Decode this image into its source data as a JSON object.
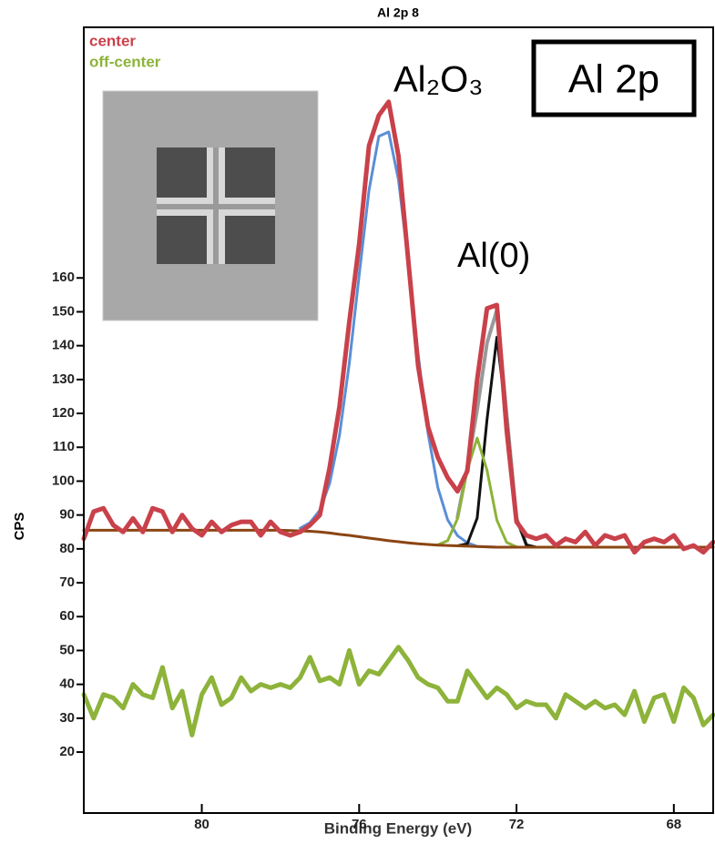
{
  "chart_data": {
    "type": "line",
    "title": "Al 2p 8",
    "x_label": "Binding Energy (eV)",
    "y_label": "CPS",
    "annotations": [
      "Al₂O₃",
      "Al(0)",
      "Al 2p"
    ],
    "xlim": [
      83,
      67
    ],
    "ylim": [
      2,
      234
    ],
    "xticks": [
      80,
      76,
      72,
      68
    ],
    "yticks": [
      20,
      30,
      40,
      50,
      60,
      70,
      80,
      90,
      100,
      110,
      120,
      130,
      140,
      150,
      160
    ],
    "legend": "upper left",
    "x": [
      83,
      82.75,
      82.5,
      82.25,
      82,
      81.75,
      81.5,
      81.25,
      81,
      80.75,
      80.5,
      80.25,
      80,
      79.75,
      79.5,
      79.25,
      79,
      78.75,
      78.5,
      78.25,
      78,
      77.75,
      77.5,
      77.25,
      77,
      76.75,
      76.5,
      76.25,
      76,
      75.75,
      75.5,
      75.25,
      75,
      74.75,
      74.5,
      74.25,
      74,
      73.75,
      73.5,
      73.25,
      73,
      72.75,
      72.5,
      72.25,
      72,
      71.75,
      71.5,
      71.25,
      71,
      70.75,
      70.5,
      70.25,
      70,
      69.75,
      69.5,
      69.25,
      69,
      68.75,
      68.5,
      68.25,
      68,
      67.75,
      67.5,
      67.25,
      67
    ],
    "series": [
      {
        "color": "#5b8fd6",
        "width": 3,
        "values": [
          null,
          null,
          null,
          null,
          null,
          null,
          null,
          null,
          null,
          null,
          null,
          null,
          null,
          null,
          null,
          null,
          null,
          null,
          null,
          null,
          null,
          null,
          86.1,
          87.7,
          91.4,
          99.3,
          113.5,
          134.8,
          160.8,
          185.8,
          201.8,
          203.1,
          189,
          164.5,
          137.4,
          114.2,
          98.1,
          88.6,
          83.9,
          81.8,
          80.7,
          80.6,
          80.5,
          null,
          null,
          null,
          null,
          null,
          null,
          null,
          null,
          null,
          null,
          null,
          null,
          null,
          null,
          null,
          null,
          null,
          null,
          null,
          null,
          null,
          null
        ]
      },
      {
        "color": "#999999",
        "width": 4,
        "values": [
          null,
          null,
          null,
          null,
          null,
          null,
          null,
          null,
          null,
          null,
          null,
          null,
          null,
          null,
          null,
          null,
          null,
          null,
          null,
          null,
          null,
          null,
          null,
          null,
          null,
          null,
          null,
          null,
          null,
          null,
          null,
          null,
          null,
          null,
          null,
          null,
          null,
          null,
          89.3,
          104.1,
          121.1,
          140.8,
          150.5,
          119.5,
          89,
          81.2,
          null,
          null,
          null,
          null,
          null,
          null,
          null,
          null,
          null,
          null,
          null,
          null,
          null,
          null,
          null,
          null,
          null,
          null,
          null
        ]
      },
      {
        "color": "#111111",
        "width": 3,
        "values": [
          null,
          null,
          null,
          null,
          null,
          null,
          null,
          null,
          null,
          null,
          null,
          null,
          null,
          null,
          null,
          null,
          null,
          null,
          null,
          null,
          null,
          null,
          null,
          null,
          null,
          null,
          null,
          null,
          null,
          null,
          null,
          null,
          null,
          null,
          null,
          null,
          null,
          null,
          80.9,
          81.5,
          89.1,
          118.2,
          142.5,
          118.1,
          88.9,
          81.2,
          80.5,
          null,
          null,
          null,
          null,
          null,
          null,
          null,
          null,
          null,
          null,
          null,
          null,
          null,
          null,
          null,
          null,
          null,
          null
        ]
      },
      {
        "color": "#8db33a",
        "width": 3,
        "values": [
          null,
          null,
          null,
          null,
          null,
          null,
          null,
          null,
          null,
          null,
          null,
          null,
          null,
          null,
          null,
          null,
          null,
          null,
          null,
          null,
          null,
          null,
          null,
          null,
          null,
          null,
          null,
          null,
          null,
          null,
          null,
          null,
          null,
          null,
          null,
          null,
          81.2,
          82.4,
          88.9,
          103.4,
          112.7,
          103.2,
          88.5,
          81.9,
          80.6,
          null,
          null,
          null,
          null,
          null,
          null,
          null,
          null,
          null,
          null,
          null,
          null,
          null,
          null,
          null,
          null,
          null,
          null,
          null,
          null
        ]
      },
      {
        "color": "#8b4513",
        "width": 3,
        "values": [
          85.5,
          85.5,
          85.5,
          85.5,
          85.5,
          85.5,
          85.5,
          85.5,
          85.5,
          85.5,
          85.5,
          85.5,
          85.5,
          85.5,
          85.5,
          85.5,
          85.5,
          85.5,
          85.5,
          85.5,
          85.5,
          85.4,
          85.3,
          85.2,
          85,
          84.7,
          84.3,
          84,
          83.6,
          83.2,
          82.8,
          82.4,
          82.1,
          81.8,
          81.5,
          81.3,
          81.1,
          81,
          80.9,
          80.8,
          80.7,
          80.6,
          80.5,
          80.5,
          80.5,
          80.5,
          80.5,
          80.5,
          80.5,
          80.5,
          80.5,
          80.5,
          80.5,
          80.5,
          80.5,
          80.5,
          80.5,
          80.5,
          80.5,
          80.5,
          80.5,
          80.5,
          80.5,
          80.5,
          80.5
        ]
      },
      {
        "name": "center",
        "color": "#c9414a",
        "width": 5,
        "values": [
          83,
          91,
          92,
          87,
          85,
          89,
          85,
          92,
          91,
          85,
          90,
          86,
          84,
          88,
          85,
          87,
          88,
          88,
          84,
          88,
          85,
          84,
          85,
          87,
          90,
          104,
          122,
          147,
          170,
          199,
          208,
          212,
          196,
          165,
          134,
          116,
          107,
          101,
          97,
          103,
          130,
          151,
          152,
          115,
          88,
          84,
          83,
          84,
          81,
          83,
          82,
          85,
          81,
          84,
          83,
          84,
          79,
          82,
          83,
          82,
          84,
          80,
          81,
          79,
          82
        ]
      },
      {
        "name": "off-center",
        "color": "#8db33a",
        "width": 5,
        "values": [
          37,
          30,
          37,
          36,
          33,
          40,
          37,
          36,
          45,
          33,
          38,
          25,
          37,
          42,
          34,
          36,
          42,
          38,
          40,
          39,
          40,
          39,
          42,
          48,
          41,
          42,
          40,
          50,
          40,
          44,
          43,
          47,
          51,
          47,
          42,
          40,
          39,
          35,
          35,
          44,
          40,
          36,
          39,
          37,
          33,
          35,
          34,
          34,
          30,
          37,
          35,
          33,
          35,
          33,
          34,
          31,
          38,
          29,
          36,
          37,
          29,
          39,
          36,
          28,
          31
        ]
      }
    ]
  }
}
